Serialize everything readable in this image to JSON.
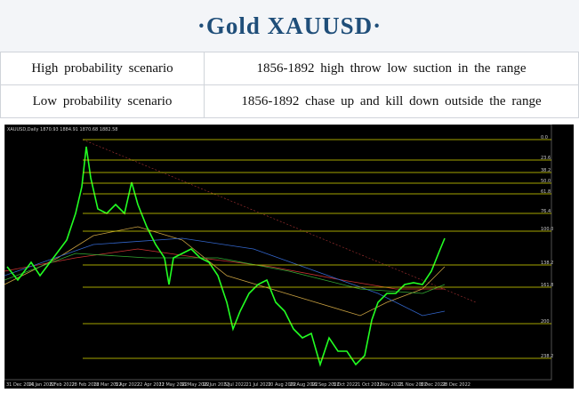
{
  "header": {
    "title": "·Gold XAUUSD·"
  },
  "table": {
    "rows": [
      [
        "High probability scenario",
        "1856-1892 high throw low suction in the range"
      ],
      [
        "Low probability scenario",
        "1856-1892 chase up and kill down outside the range"
      ]
    ]
  },
  "chart": {
    "symbol": "XAUUSD,Daily 1870.93 1884.91 1870.68 1882.58",
    "levels": [
      "0.0",
      "23.6",
      "38.2",
      "50.0",
      "61.8",
      "76.4",
      "100.0",
      "138.2",
      "161.8",
      "200",
      "238.2"
    ],
    "dates": [
      "31 Dec 2021",
      "14 Jan 2022",
      "8 Feb 2022",
      "28 Feb 2022",
      "18 Mar 2022",
      "5 Apr 2022",
      "22 Apr 2022",
      "11 May 2022",
      "30 May 2022",
      "16 Jun 2022",
      "5 Jul 2022",
      "21 Jul 2022",
      "10 Aug 2022",
      "29 Aug 2022",
      "16 Sep 2022",
      "5 Oct 2022",
      "21 Oct 2022",
      "1 Nov 2022",
      "21 Nov 2022",
      "8 Dec 2022",
      "28 Dec 2022"
    ]
  }
}
